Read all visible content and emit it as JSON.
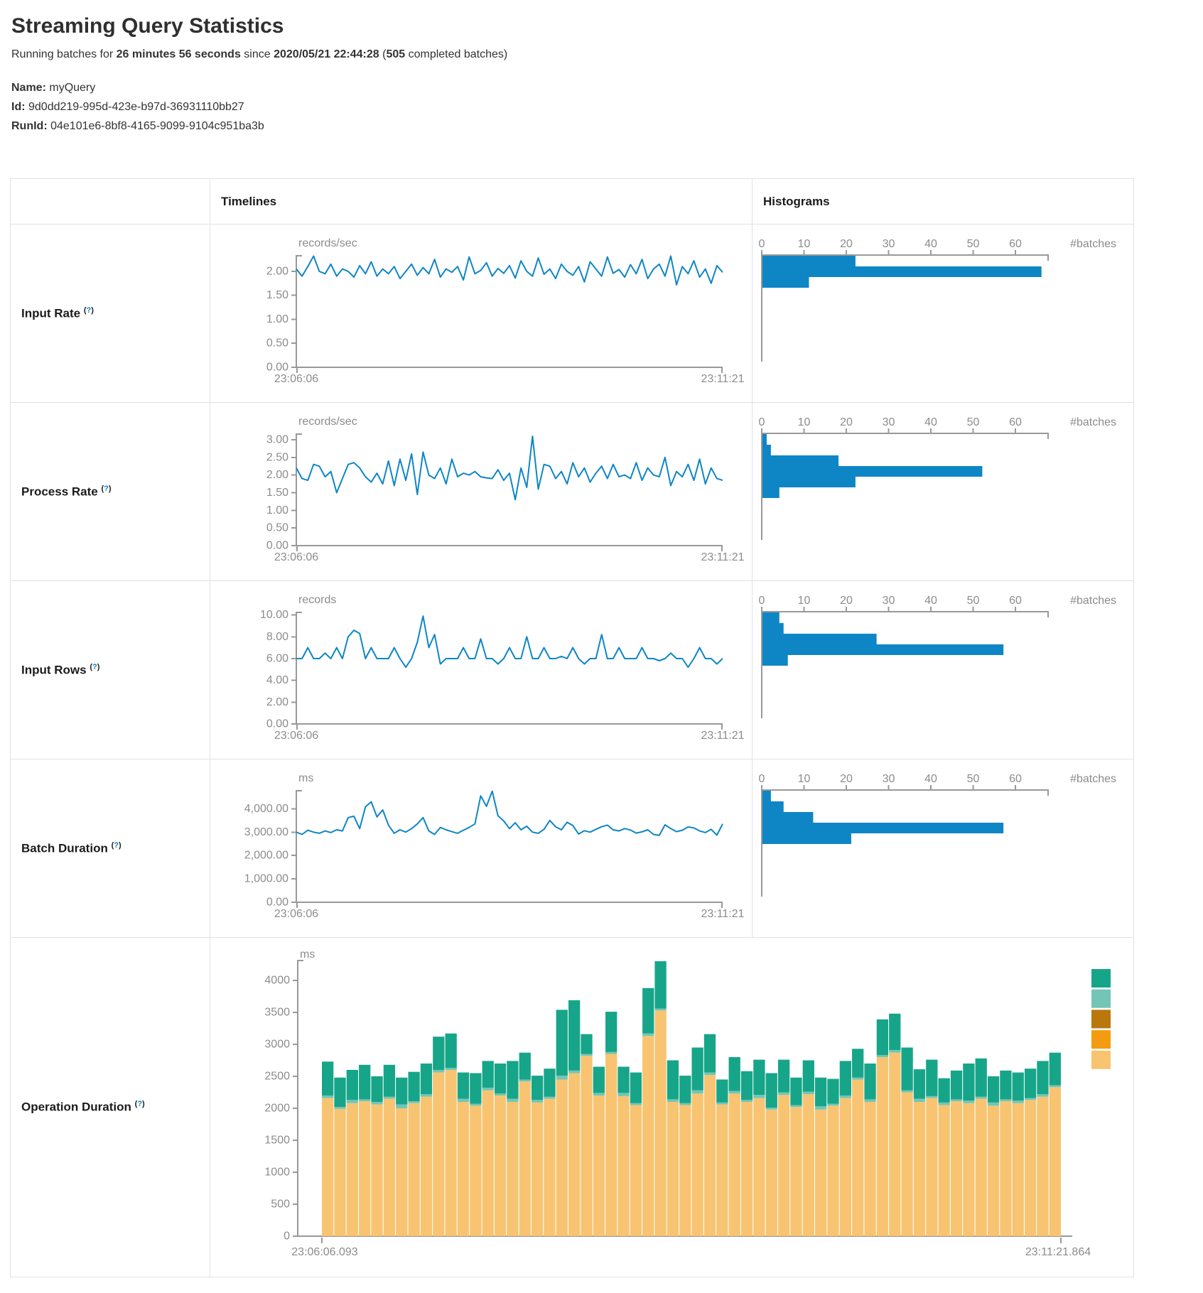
{
  "page": {
    "title": "Streaming Query Statistics",
    "subtitle": {
      "prefix": "Running batches for ",
      "duration": "26 minutes 56 seconds",
      "mid": " since ",
      "start_time": "2020/05/21 22:44:28",
      "paren": " (",
      "batch_count": "505",
      "suffix": " completed batches)"
    },
    "query": {
      "name_label": "Name:",
      "name_value": "myQuery",
      "id_label": "Id:",
      "id_value": "9d0dd219-995d-423e-b97d-36931110bb27",
      "runid_label": "RunId:",
      "runid_value": "04e101e6-8bf8-4165-9099-9104c951ba3b"
    }
  },
  "table": {
    "headers": {
      "timelines": "Timelines",
      "histograms": "Histograms"
    },
    "help_badge": {
      "open": "(",
      "mark": "?",
      "close": ")"
    }
  },
  "colors": {
    "accent_blue": "#0E86C6",
    "axis_gray": "#999999",
    "text_gray": "#8C8C8C",
    "border_gray": "#dee2e6",
    "teal": "#17A589",
    "light_teal": "#73C6B6",
    "dark_orange": "#B9770E",
    "orange": "#F39C12",
    "light_orange": "#F8C471"
  },
  "chart_data": {
    "rows": [
      {
        "key": "input-rate",
        "label": "Input Rate",
        "timeline": {
          "type": "line",
          "unit": "records/sec",
          "x_start": "23:06:06",
          "x_end": "23:11:21",
          "ymax": 2.34,
          "yticks": [
            {
              "v": 0,
              "t": "0.00"
            },
            {
              "v": 0.5,
              "t": "0.50"
            },
            {
              "v": 1,
              "t": "1.00"
            },
            {
              "v": 1.5,
              "t": "1.50"
            },
            {
              "v": 2,
              "t": "2.00"
            }
          ],
          "values": [
            2.05,
            1.9,
            2.1,
            2.32,
            2.0,
            1.95,
            2.15,
            1.9,
            2.05,
            2.0,
            1.88,
            2.12,
            1.95,
            2.2,
            1.9,
            2.05,
            1.95,
            2.1,
            1.85,
            2.0,
            2.15,
            1.92,
            2.08,
            1.95,
            2.25,
            1.88,
            2.05,
            1.98,
            2.1,
            1.82,
            2.3,
            1.95,
            2.02,
            2.18,
            1.9,
            2.06,
            1.96,
            2.12,
            1.86,
            2.22,
            2.0,
            1.9,
            2.28,
            1.94,
            2.05,
            1.85,
            2.15,
            2.0,
            1.92,
            2.1,
            1.78,
            2.2,
            2.05,
            1.9,
            2.3,
            1.96,
            2.04,
            1.88,
            2.14,
            1.95,
            2.25,
            1.85,
            2.05,
            2.15,
            1.9,
            2.32,
            1.72,
            2.1,
            1.95,
            2.22,
            1.88,
            2.05,
            1.75,
            2.12,
            1.98
          ]
        },
        "histogram": {
          "type": "bar",
          "xticks": [
            "0",
            "10",
            "20",
            "30",
            "40",
            "50",
            "60"
          ],
          "xlabel": "#batches",
          "bins": [
            22,
            66,
            11
          ]
        }
      },
      {
        "key": "process-rate",
        "label": "Process Rate",
        "timeline": {
          "type": "line",
          "unit": "records/sec",
          "x_start": "23:06:06",
          "x_end": "23:11:21",
          "ymax": 3.18,
          "yticks": [
            {
              "v": 0,
              "t": "0.00"
            },
            {
              "v": 0.5,
              "t": "0.50"
            },
            {
              "v": 1,
              "t": "1.00"
            },
            {
              "v": 1.5,
              "t": "1.50"
            },
            {
              "v": 2,
              "t": "2.00"
            },
            {
              "v": 2.5,
              "t": "2.50"
            },
            {
              "v": 3,
              "t": "3.00"
            }
          ],
          "values": [
            2.2,
            1.9,
            1.85,
            2.3,
            2.25,
            1.95,
            2.1,
            1.5,
            1.9,
            2.3,
            2.35,
            2.2,
            1.95,
            1.8,
            2.05,
            1.75,
            2.4,
            1.7,
            2.45,
            1.85,
            2.6,
            1.45,
            2.65,
            2.0,
            1.9,
            2.2,
            1.75,
            2.45,
            1.95,
            2.05,
            2.0,
            2.1,
            1.95,
            1.92,
            1.9,
            2.15,
            1.85,
            2.05,
            1.3,
            2.2,
            1.65,
            3.1,
            1.6,
            2.3,
            2.25,
            1.9,
            2.1,
            1.75,
            2.35,
            1.95,
            2.2,
            1.8,
            2.05,
            2.25,
            1.9,
            2.3,
            1.95,
            2.0,
            1.9,
            2.35,
            1.85,
            2.2,
            2.0,
            1.95,
            2.5,
            1.7,
            2.1,
            1.95,
            2.3,
            1.85,
            2.45,
            1.75,
            2.2,
            1.9,
            1.85
          ]
        },
        "histogram": {
          "type": "bar",
          "xticks": [
            "0",
            "10",
            "20",
            "30",
            "40",
            "50",
            "60"
          ],
          "xlabel": "#batches",
          "bins": [
            1,
            2,
            18,
            52,
            22,
            4
          ]
        }
      },
      {
        "key": "input-rows",
        "label": "Input Rows",
        "timeline": {
          "type": "line",
          "unit": "records",
          "x_start": "23:06:06",
          "x_end": "23:11:21",
          "ymax": 10.3,
          "yticks": [
            {
              "v": 0,
              "t": "0.00"
            },
            {
              "v": 2,
              "t": "2.00"
            },
            {
              "v": 4,
              "t": "4.00"
            },
            {
              "v": 6,
              "t": "6.00"
            },
            {
              "v": 8,
              "t": "8.00"
            },
            {
              "v": 10,
              "t": "10.00"
            }
          ],
          "values": [
            6,
            6,
            7,
            6,
            6,
            6.5,
            6,
            7,
            6,
            8,
            8.6,
            8.3,
            6,
            7,
            6,
            6,
            6,
            7,
            6,
            5.2,
            6,
            7.5,
            9.9,
            7,
            8.2,
            5.5,
            6,
            6,
            6,
            7,
            6,
            6,
            7.8,
            6,
            6,
            5.5,
            6,
            7,
            6,
            6,
            8,
            6,
            6,
            7,
            6,
            6,
            6.2,
            6,
            7,
            6,
            5.5,
            6,
            6,
            8.2,
            6,
            6,
            7,
            6,
            6,
            6,
            7,
            6,
            6,
            5.8,
            6,
            6.5,
            6,
            6,
            5.2,
            6,
            7,
            6,
            6,
            5.5,
            6
          ]
        },
        "histogram": {
          "type": "bar",
          "xticks": [
            "0",
            "10",
            "20",
            "30",
            "40",
            "50",
            "60"
          ],
          "xlabel": "#batches",
          "bins": [
            4,
            5,
            27,
            57,
            6
          ]
        }
      },
      {
        "key": "batch-duration",
        "label": "Batch Duration",
        "timeline": {
          "type": "line",
          "unit": "ms",
          "x_start": "23:06:06",
          "x_end": "23:11:21",
          "ymax": 4800,
          "yticks": [
            {
              "v": 0,
              "t": "0.00"
            },
            {
              "v": 1000,
              "t": "1,000.00"
            },
            {
              "v": 2000,
              "t": "2,000.00"
            },
            {
              "v": 3000,
              "t": "3,000.00"
            },
            {
              "v": 4000,
              "t": "4,000.00"
            }
          ],
          "values": [
            3000,
            2900,
            3080,
            3000,
            2950,
            3050,
            2980,
            3100,
            3050,
            3620,
            3680,
            3150,
            4080,
            4300,
            3650,
            3950,
            3300,
            2950,
            3100,
            3000,
            3150,
            3350,
            3620,
            3050,
            2900,
            3200,
            3100,
            3020,
            2950,
            3080,
            3200,
            3350,
            4550,
            4100,
            4750,
            3700,
            3480,
            3150,
            3400,
            3100,
            3250,
            3000,
            2950,
            3120,
            3500,
            3230,
            3100,
            3420,
            3280,
            2920,
            3060,
            3000,
            3120,
            3230,
            3300,
            3100,
            3050,
            3150,
            3090,
            2960,
            3010,
            3100,
            2900,
            2860,
            3310,
            3150,
            3020,
            3080,
            3220,
            3180,
            3050,
            2980,
            3120,
            2870,
            3350
          ]
        },
        "histogram": {
          "type": "bar",
          "xticks": [
            "0",
            "10",
            "20",
            "30",
            "40",
            "50",
            "60"
          ],
          "xlabel": "#batches",
          "bins": [
            2,
            5,
            12,
            57,
            21
          ]
        }
      },
      {
        "key": "operation-duration",
        "label": "Operation Duration",
        "timeline": {
          "type": "stacked-bar",
          "unit": "ms",
          "x_start": "23:06:06.093",
          "x_end": "23:11:21.864",
          "ymax": 4322,
          "yticks": [
            {
              "v": 0,
              "t": "0"
            },
            {
              "v": 500,
              "t": "500"
            },
            {
              "v": 1000,
              "t": "1000"
            },
            {
              "v": 1500,
              "t": "1500"
            },
            {
              "v": 2000,
              "t": "2000"
            },
            {
              "v": 2500,
              "t": "2500"
            },
            {
              "v": 3000,
              "t": "3000"
            },
            {
              "v": 3500,
              "t": "3500"
            },
            {
              "v": 4000,
              "t": "4000"
            }
          ],
          "series": [
            {
              "name": "bottom-segment",
              "color": "#F8C471",
              "values": [
                2160,
                1990,
                2080,
                2110,
                2060,
                2150,
                2000,
                2080,
                2180,
                2560,
                2600,
                2100,
                2040,
                2280,
                2200,
                2100,
                2420,
                2090,
                2150,
                2450,
                2550,
                2820,
                2200,
                2850,
                2190,
                2050,
                3130,
                3530,
                2100,
                2050,
                2230,
                2520,
                2060,
                2230,
                2100,
                2160,
                1980,
                2210,
                2020,
                2220,
                1980,
                2040,
                2160,
                2450,
                2100,
                2800,
                2870,
                2250,
                2100,
                2160,
                2050,
                2110,
                2080,
                2150,
                2040,
                2110,
                2080,
                2130,
                2180,
                2330
              ]
            },
            {
              "name": "middle-segment",
              "color": "#73C6B6",
              "values": [
                40,
                30,
                50,
                30,
                40,
                30,
                60,
                30,
                40,
                40,
                30,
                50,
                30,
                40,
                30,
                50,
                30,
                40,
                30,
                60,
                40,
                30,
                40,
                30,
                50,
                30,
                40,
                30,
                40,
                30,
                50,
                40,
                30,
                40,
                30,
                50,
                30,
                40,
                30,
                40,
                50,
                30,
                40,
                30,
                40,
                30,
                40,
                30,
                50,
                30,
                40,
                30,
                40,
                30,
                50,
                30,
                40,
                30,
                40,
                30
              ]
            },
            {
              "name": "top-segment",
              "color": "#17A589",
              "values": [
                530,
                460,
                470,
                540,
                400,
                500,
                420,
                460,
                480,
                520,
                540,
                410,
                480,
                420,
                470,
                590,
                420,
                380,
                440,
                1030,
                1100,
                310,
                410,
                630,
                410,
                480,
                710,
                740,
                610,
                430,
                670,
                600,
                360,
                530,
                450,
                550,
                540,
                510,
                430,
                490,
                450,
                390,
                540,
                450,
                560,
                560,
                570,
                670,
                460,
                570,
                380,
                450,
                580,
                600,
                410,
                450,
                440,
                460,
                520,
                510
              ]
            }
          ],
          "legend_colors": [
            "#17A589",
            "#73C6B6",
            "#B9770E",
            "#F39C12",
            "#F8C471"
          ]
        }
      }
    ]
  }
}
